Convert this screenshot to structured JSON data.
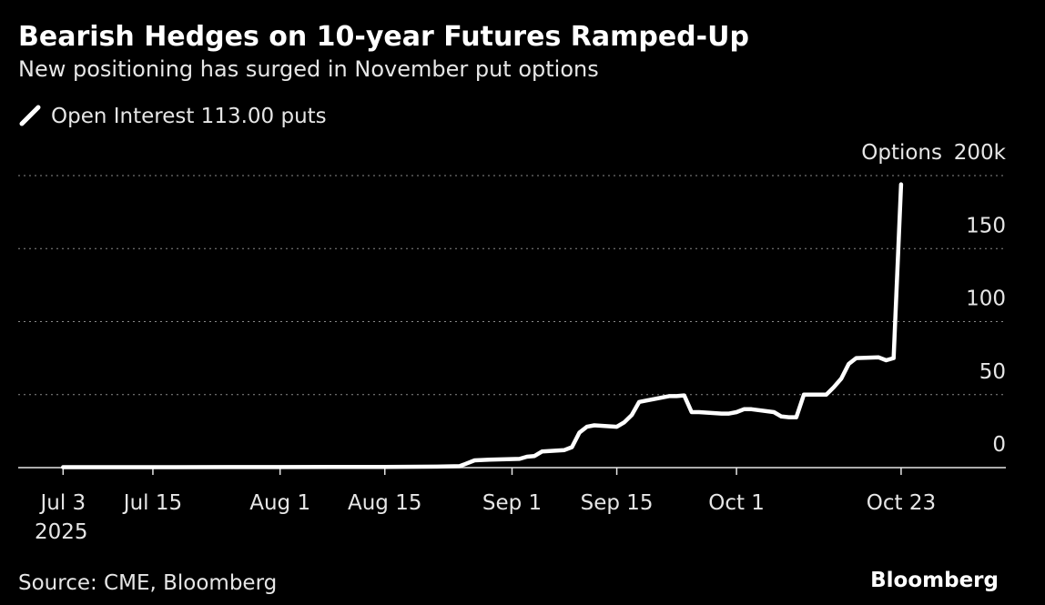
{
  "chart_data": {
    "type": "line",
    "title": "Bearish Hedges on 10-year Futures Ramped-Up",
    "subtitle": "New positioning has surged in November put options",
    "y_label": "Options",
    "source": "Source: CME, Bloomberg",
    "brand": "Bloomberg",
    "x_year_label": "2025",
    "x": [
      "2025-07-03",
      "2025-07-11",
      "2025-07-18",
      "2025-07-25",
      "2025-08-01",
      "2025-08-08",
      "2025-08-15",
      "2025-08-22",
      "2025-08-25",
      "2025-08-27",
      "2025-08-29",
      "2025-09-02",
      "2025-09-03",
      "2025-09-04",
      "2025-09-05",
      "2025-09-08",
      "2025-09-09",
      "2025-09-10",
      "2025-09-11",
      "2025-09-12",
      "2025-09-15",
      "2025-09-16",
      "2025-09-17",
      "2025-09-18",
      "2025-09-19",
      "2025-09-22",
      "2025-09-23",
      "2025-09-24",
      "2025-09-25",
      "2025-09-26",
      "2025-09-29",
      "2025-09-30",
      "2025-10-01",
      "2025-10-02",
      "2025-10-03",
      "2025-10-06",
      "2025-10-07",
      "2025-10-08",
      "2025-10-09",
      "2025-10-10",
      "2025-10-13",
      "2025-10-14",
      "2025-10-15",
      "2025-10-16",
      "2025-10-17",
      "2025-10-20",
      "2025-10-21",
      "2025-10-22",
      "2025-10-23"
    ],
    "series": [
      {
        "name": "Open Interest 113.00 puts",
        "color": "#ffffff",
        "values": [
          0.3,
          0.3,
          0.3,
          0.4,
          0.4,
          0.5,
          0.5,
          0.7,
          1,
          5,
          5.5,
          6,
          7.5,
          8,
          11,
          12,
          14,
          24,
          28,
          29,
          28,
          31,
          36,
          45,
          46,
          49,
          49,
          49.5,
          38,
          38,
          37,
          37,
          38,
          40,
          40,
          38,
          35,
          34.5,
          34.5,
          50,
          50,
          55,
          61,
          71,
          75,
          75.5,
          73.5,
          75,
          194
        ]
      }
    ],
    "xlim": [
      "2025-06-27",
      "2025-11-06"
    ],
    "xticks": [
      {
        "value": "2025-07-03",
        "label": "Jul 3"
      },
      {
        "value": "2025-07-15",
        "label": "Jul 15"
      },
      {
        "value": "2025-08-01",
        "label": "Aug 1"
      },
      {
        "value": "2025-08-15",
        "label": "Aug 15"
      },
      {
        "value": "2025-09-01",
        "label": "Sep 1"
      },
      {
        "value": "2025-09-15",
        "label": "Sep 15"
      },
      {
        "value": "2025-10-01",
        "label": "Oct 1"
      },
      {
        "value": "2025-10-23",
        "label": "Oct 23"
      }
    ],
    "ylim": [
      0,
      200
    ],
    "yticks": [
      0,
      50,
      100,
      150,
      {
        "value": 200,
        "label": "200k"
      }
    ],
    "grid": true
  }
}
